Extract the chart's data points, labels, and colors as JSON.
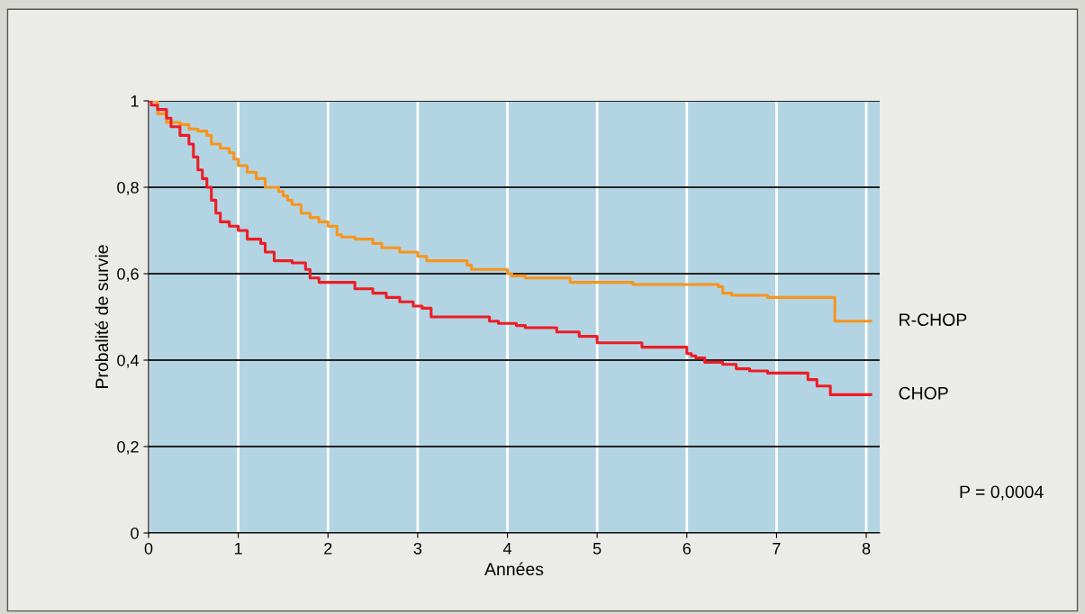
{
  "chart_data": {
    "type": "step",
    "xlabel": "Années",
    "ylabel": "Probalité de survie",
    "xlim": [
      0,
      8.15
    ],
    "xticks": [
      0,
      1,
      2,
      3,
      4,
      5,
      6,
      7,
      8
    ],
    "ylim": [
      0,
      1
    ],
    "yticks": [
      0,
      {
        "value": 0.2,
        "label": "0,2"
      },
      {
        "value": 0.4,
        "label": "0,4"
      },
      {
        "value": 0.6,
        "label": "0,6"
      },
      {
        "value": 0.8,
        "label": "0,8"
      },
      1
    ],
    "grid": true,
    "legend": false,
    "annotations": [
      "P = 0,0004"
    ],
    "series": [
      {
        "name": "R-CHOP",
        "color": "#f7941d",
        "x": [
          0,
          0.1,
          0.2,
          0.35,
          0.45,
          0.55,
          0.65,
          0.7,
          0.8,
          0.9,
          0.95,
          1.0,
          1.1,
          1.2,
          1.3,
          1.45,
          1.5,
          1.55,
          1.6,
          1.7,
          1.8,
          1.9,
          2.0,
          2.1,
          2.15,
          2.3,
          2.5,
          2.6,
          2.8,
          3.0,
          3.1,
          3.55,
          3.6,
          3.8,
          4.0,
          4.05,
          4.2,
          4.7,
          5.4,
          6.35,
          6.4,
          6.5,
          6.9,
          7.65,
          8.05
        ],
        "values": [
          1.0,
          0.97,
          0.95,
          0.945,
          0.935,
          0.93,
          0.92,
          0.9,
          0.89,
          0.88,
          0.865,
          0.85,
          0.835,
          0.82,
          0.8,
          0.79,
          0.78,
          0.77,
          0.76,
          0.74,
          0.73,
          0.72,
          0.71,
          0.69,
          0.685,
          0.68,
          0.67,
          0.66,
          0.65,
          0.64,
          0.63,
          0.62,
          0.61,
          0.61,
          0.6,
          0.595,
          0.59,
          0.58,
          0.575,
          0.57,
          0.555,
          0.55,
          0.545,
          0.49,
          0.49
        ]
      },
      {
        "name": "CHOP",
        "color": "#ed1c24",
        "x": [
          0,
          0.03,
          0.1,
          0.2,
          0.25,
          0.35,
          0.45,
          0.5,
          0.55,
          0.6,
          0.65,
          0.7,
          0.75,
          0.8,
          0.9,
          1.0,
          1.1,
          1.25,
          1.3,
          1.4,
          1.6,
          1.75,
          1.8,
          1.9,
          2.3,
          2.5,
          2.65,
          2.8,
          2.95,
          3.05,
          3.15,
          3.5,
          3.8,
          3.9,
          4.1,
          4.2,
          4.55,
          4.8,
          5.0,
          5.5,
          6.0,
          6.05,
          6.1,
          6.2,
          6.4,
          6.55,
          6.7,
          6.9,
          7.35,
          7.45,
          7.6,
          8.05
        ],
        "values": [
          1.0,
          0.99,
          0.98,
          0.96,
          0.94,
          0.92,
          0.9,
          0.87,
          0.84,
          0.82,
          0.8,
          0.77,
          0.74,
          0.72,
          0.71,
          0.7,
          0.68,
          0.67,
          0.65,
          0.63,
          0.625,
          0.61,
          0.59,
          0.58,
          0.565,
          0.555,
          0.545,
          0.535,
          0.525,
          0.52,
          0.5,
          0.5,
          0.49,
          0.485,
          0.48,
          0.475,
          0.465,
          0.455,
          0.44,
          0.43,
          0.415,
          0.41,
          0.405,
          0.395,
          0.39,
          0.38,
          0.375,
          0.37,
          0.355,
          0.34,
          0.32,
          0.32
        ]
      }
    ]
  }
}
